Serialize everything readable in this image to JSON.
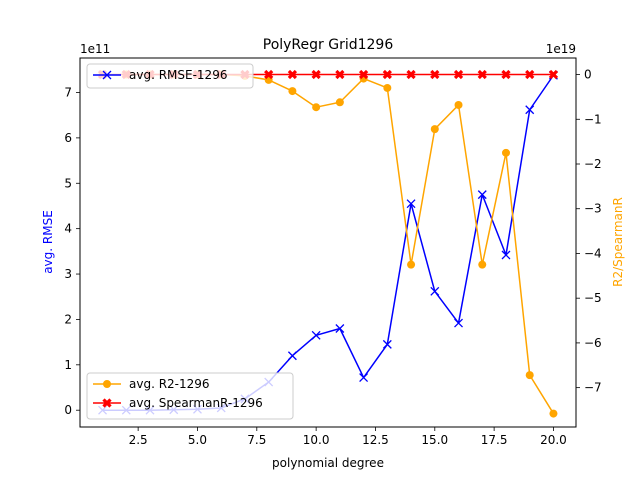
{
  "chart_data": {
    "type": "line",
    "title": "PolyRegr Grid1296",
    "xlabel": "polynomial degree",
    "ylabel_left": "avg. RMSE",
    "ylabel_right": "R2/SpearmanR",
    "left_offset_text": "1e11",
    "right_offset_text": "1e19",
    "xlim": [
      0.05,
      20.95
    ],
    "ylim_left": [
      -0.37,
      7.76
    ],
    "ylim_right": [
      -7.88,
      0.37
    ],
    "x_ticks": [
      2.5,
      5.0,
      7.5,
      10.0,
      12.5,
      15.0,
      17.5,
      20.0
    ],
    "x_tick_labels": [
      "2.5",
      "5.0",
      "7.5",
      "10.0",
      "12.5",
      "15.0",
      "17.5",
      "20.0"
    ],
    "left_ticks": [
      0,
      1,
      2,
      3,
      4,
      5,
      6,
      7
    ],
    "left_tick_labels": [
      "0",
      "1",
      "2",
      "3",
      "4",
      "5",
      "6",
      "7"
    ],
    "right_ticks": [
      0,
      -1,
      -2,
      -3,
      -4,
      -5,
      -6,
      -7
    ],
    "right_tick_labels": [
      "0",
      "−1",
      "−2",
      "−3",
      "−4",
      "−5",
      "−6",
      "−7"
    ],
    "grid": false,
    "x": [
      1,
      2,
      3,
      4,
      5,
      6,
      7,
      8,
      9,
      10,
      11,
      12,
      13,
      14,
      15,
      16,
      17,
      18,
      19,
      20
    ],
    "series": [
      {
        "name": "avg. RMSE-1296",
        "axis": "left",
        "color": "#0000ff",
        "marker": "x",
        "values": [
          0.0,
          0.0,
          0.0,
          0.01,
          0.02,
          0.05,
          0.25,
          0.62,
          1.2,
          1.65,
          1.8,
          0.72,
          1.45,
          4.55,
          2.62,
          1.92,
          4.75,
          3.42,
          6.62,
          7.38
        ]
      },
      {
        "name": "avg. R2-1296",
        "axis": "right",
        "color": "#ffa500",
        "marker": "o",
        "values": [
          0.0,
          0.0,
          0.0,
          0.0,
          0.0,
          0.0,
          -0.03,
          -0.12,
          -0.37,
          -0.73,
          -0.62,
          -0.09,
          -0.3,
          -4.25,
          -1.22,
          -0.68,
          -4.25,
          -1.75,
          -6.72,
          -7.58
        ]
      },
      {
        "name": "avg. SpearmanR-1296",
        "axis": "right",
        "color": "#ff0000",
        "marker": "X",
        "values": [
          0,
          0,
          0,
          0,
          0,
          0,
          0,
          0,
          0,
          0,
          0,
          0,
          0,
          0,
          0,
          0,
          0,
          0,
          0,
          0
        ]
      }
    ],
    "legend_upper": {
      "placement": "upper-left",
      "entries": [
        "avg. RMSE-1296"
      ]
    },
    "legend_lower": {
      "placement": "lower-left",
      "entries": [
        "avg. R2-1296",
        "avg. SpearmanR-1296"
      ]
    }
  }
}
